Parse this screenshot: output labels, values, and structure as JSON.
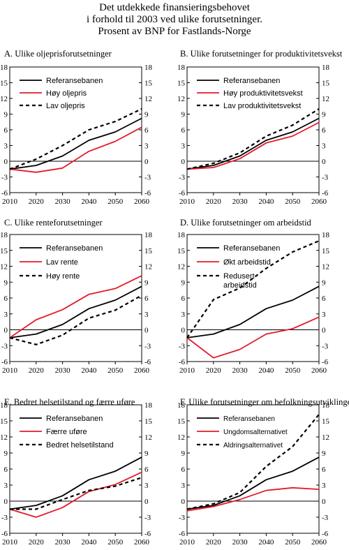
{
  "title_lines": [
    "Det utdekkede finansieringsbehovet",
    "i forhold til 2003 ved ulike forutsetninger.",
    "Prosent av BNP for Fastlands-Norge"
  ],
  "chart_data": [
    {
      "type": "line",
      "title": "A. Ulike oljeprisforutsetninger",
      "x": [
        2010,
        2020,
        2030,
        2040,
        2050,
        2060
      ],
      "ylim": [
        -6,
        18
      ],
      "yticks": [
        -6,
        -3,
        0,
        3,
        6,
        9,
        12,
        15,
        18
      ],
      "legend_position": "top-left",
      "series": [
        {
          "name": "Referansebanen",
          "color": "#000000",
          "dash": "solid",
          "values": [
            -1.5,
            -0.8,
            1.0,
            4.0,
            5.6,
            8.2
          ]
        },
        {
          "name": "Høy oljepris",
          "color": "#e31a2b",
          "dash": "solid",
          "values": [
            -1.5,
            -2.1,
            -1.3,
            1.9,
            3.8,
            6.5
          ]
        },
        {
          "name": "Lav oljepris",
          "color": "#000000",
          "dash": "dash",
          "values": [
            -1.5,
            0.4,
            3.0,
            6.0,
            7.6,
            10.0
          ]
        }
      ]
    },
    {
      "type": "line",
      "title": "B. Ulike forutsetninger for produktivitetsvekst",
      "x": [
        2010,
        2020,
        2030,
        2040,
        2050,
        2060
      ],
      "ylim": [
        -6,
        18
      ],
      "yticks": [
        -6,
        -3,
        0,
        3,
        6,
        9,
        12,
        15,
        18
      ],
      "legend_position": "top-left",
      "series": [
        {
          "name": "Referansebanen",
          "color": "#000000",
          "dash": "solid",
          "values": [
            -1.5,
            -0.8,
            1.0,
            4.0,
            5.6,
            8.2
          ]
        },
        {
          "name": "Høy produktivitetsvekst",
          "color": "#e31a2b",
          "dash": "solid",
          "values": [
            -1.5,
            -1.2,
            0.5,
            3.5,
            4.8,
            7.4
          ]
        },
        {
          "name": "Lav produktivitetsvekst",
          "color": "#000000",
          "dash": "dash",
          "values": [
            -1.5,
            -0.4,
            1.6,
            4.8,
            6.9,
            10.0
          ]
        }
      ]
    },
    {
      "type": "line",
      "title": "C. Ulike renteforutsetninger",
      "x": [
        2010,
        2020,
        2030,
        2040,
        2050,
        2060
      ],
      "ylim": [
        -6,
        18
      ],
      "yticks": [
        -6,
        -3,
        0,
        3,
        6,
        9,
        12,
        15,
        18
      ],
      "legend_position": "top-left",
      "series": [
        {
          "name": "Referansebanen",
          "color": "#000000",
          "dash": "solid",
          "values": [
            -1.5,
            -0.8,
            1.0,
            4.0,
            5.6,
            8.2
          ]
        },
        {
          "name": "Lav rente",
          "color": "#e31a2b",
          "dash": "solid",
          "values": [
            -1.5,
            1.9,
            3.8,
            6.7,
            7.8,
            10.2
          ]
        },
        {
          "name": "Høy rente",
          "color": "#000000",
          "dash": "dash",
          "values": [
            -1.5,
            -2.8,
            -1.0,
            2.2,
            3.7,
            6.5
          ]
        }
      ]
    },
    {
      "type": "line",
      "title": "D. Ulike forutsetninger om arbeidstid",
      "x": [
        2010,
        2020,
        2030,
        2040,
        2050,
        2060
      ],
      "ylim": [
        -6,
        18
      ],
      "yticks": [
        -6,
        -3,
        0,
        3,
        6,
        9,
        12,
        15,
        18
      ],
      "legend_position": "top-left",
      "series": [
        {
          "name": "Referansebanen",
          "color": "#000000",
          "dash": "solid",
          "values": [
            -1.5,
            -0.8,
            1.0,
            4.0,
            5.6,
            8.2
          ]
        },
        {
          "name": "Økt arbeidstid",
          "color": "#e31a2b",
          "dash": "solid",
          "values": [
            -1.5,
            -5.3,
            -3.7,
            -0.8,
            0.2,
            2.4
          ]
        },
        {
          "name": "Redusert arbeidstid",
          "color": "#000000",
          "dash": "dash",
          "values": [
            -1.5,
            5.7,
            7.9,
            11.6,
            14.7,
            16.8
          ]
        }
      ]
    },
    {
      "type": "line",
      "title": "E. Bedret helsetilstand og færre uføre",
      "x": [
        2010,
        2020,
        2030,
        2040,
        2050,
        2060
      ],
      "ylim": [
        -6,
        18
      ],
      "yticks": [
        -6,
        -3,
        0,
        3,
        6,
        9,
        12,
        15,
        18
      ],
      "legend_position": "top-left",
      "series": [
        {
          "name": "Referansebanen",
          "color": "#000000",
          "dash": "solid",
          "values": [
            -1.5,
            -0.8,
            1.0,
            4.0,
            5.6,
            8.2
          ]
        },
        {
          "name": "Færre uføre",
          "color": "#e31a2b",
          "dash": "solid",
          "values": [
            -1.5,
            -3.0,
            -1.2,
            1.8,
            3.1,
            5.4
          ]
        },
        {
          "name": "Bedret helsetilstand",
          "color": "#000000",
          "dash": "dash",
          "values": [
            -1.5,
            -1.5,
            0.3,
            2.0,
            2.8,
            4.4
          ]
        }
      ]
    },
    {
      "type": "line",
      "title": "F. Ulike forutsetninger om befolkningsutviklingen",
      "x": [
        2010,
        2020,
        2030,
        2040,
        2050,
        2060
      ],
      "ylim": [
        -6,
        18
      ],
      "yticks": [
        -6,
        -3,
        0,
        3,
        6,
        9,
        12,
        15,
        18
      ],
      "legend_position": "top-left",
      "series": [
        {
          "name": "Referansebanen",
          "color": "#000000",
          "dash": "solid",
          "values": [
            -1.5,
            -0.8,
            1.0,
            4.0,
            5.6,
            8.2
          ]
        },
        {
          "name": "Ungdomsalternativet",
          "color": "#e31a2b",
          "dash": "solid",
          "values": [
            -1.8,
            -1.0,
            0.3,
            2.0,
            2.5,
            2.2
          ]
        },
        {
          "name": "Aldringsalternativet",
          "color": "#000000",
          "dash": "dash",
          "values": [
            -1.5,
            -0.5,
            1.6,
            6.5,
            10.2,
            16.2
          ]
        }
      ]
    }
  ]
}
